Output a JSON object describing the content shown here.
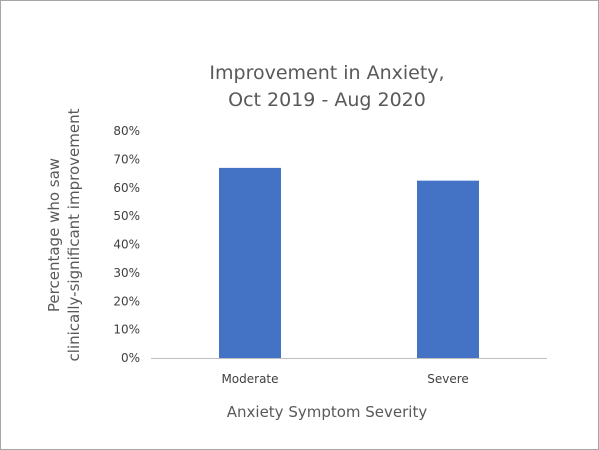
{
  "chart_data": {
    "type": "bar",
    "title": [
      "Improvement in Anxiety,",
      "Oct 2019 - Aug 2020"
    ],
    "categories": [
      "Moderate",
      "Severe"
    ],
    "values": [
      67,
      62.5
    ],
    "xlabel": "Anxiety Symptom Severity",
    "ylabel": [
      "Percentage who saw",
      "clinically-significant improvement"
    ],
    "ylim": [
      0,
      80
    ],
    "yticks": [
      "0%",
      "10%",
      "20%",
      "30%",
      "40%",
      "50%",
      "60%",
      "70%",
      "80%"
    ],
    "grid": false,
    "legend": "none",
    "bar_color": "#4472c4",
    "axis_color": "#bfbfbf"
  }
}
